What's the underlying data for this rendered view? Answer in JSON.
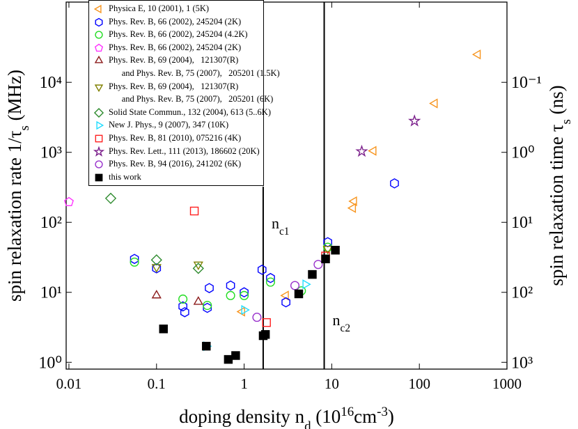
{
  "chart_data": {
    "type": "scatter",
    "log_x": true,
    "log_y": true,
    "xlim": [
      0.0093,
      1000
    ],
    "xticks": [
      0.01,
      0.1,
      1,
      10,
      100,
      1000
    ],
    "ylim": [
      0.8,
      140000
    ],
    "yticks": [
      {
        "value": 1,
        "label": "10⁰"
      },
      {
        "value": 10,
        "label": "10¹"
      },
      {
        "value": 100,
        "label": "10²"
      },
      {
        "value": 1000,
        "label": "10³"
      },
      {
        "value": 10000,
        "label": "10⁴"
      }
    ],
    "y2lim": [
      1250,
      0.00714
    ],
    "y2ticks": [
      {
        "value": 0.1,
        "label": "10⁻¹"
      },
      {
        "value": 1,
        "label": "10⁰"
      },
      {
        "value": 10,
        "label": "10¹"
      },
      {
        "value": 100,
        "label": "10²"
      },
      {
        "value": 1000,
        "label": "10³"
      }
    ],
    "xlabel": [
      "doping density n",
      "d",
      " (10",
      "16",
      "cm",
      "-3",
      ")"
    ],
    "ylabel": [
      "spin relaxation rate 1/τ",
      "s",
      " (MHz)"
    ],
    "y2label": [
      "spin relaxation time τ",
      "s",
      " (ns)"
    ],
    "vlines": [
      {
        "x": 1.65,
        "label": [
          "n",
          "c1"
        ]
      },
      {
        "x": 8.2,
        "label": [
          "n",
          "c2"
        ]
      }
    ],
    "series": [
      {
        "name": "Physica E, 10 (2001), 1 (5K)",
        "color": "#f7941d",
        "marker": "tri-left",
        "filled": false,
        "x": [
          0.95,
          3.0,
          17.5,
          18,
          30,
          150,
          465
        ],
        "values": [
          5.3,
          9,
          160,
          200,
          1050,
          5000,
          25000
        ]
      },
      {
        "name": "Phys. Rev. B, 66 (2002), 245204 (2K)",
        "color": "#0000ff",
        "marker": "hexagon",
        "filled": false,
        "x": [
          0.056,
          0.1,
          0.2,
          0.21,
          0.38,
          0.4,
          0.7,
          1.0,
          1.6,
          2.0,
          3.0,
          9,
          52
        ],
        "values": [
          30,
          22,
          6.3,
          5.2,
          6,
          11.5,
          12.5,
          10,
          21,
          16,
          7.2,
          52,
          360
        ]
      },
      {
        "name": "Phys. Rev. B, 66 (2002), 245204 (4.2K)",
        "color": "#22dd22",
        "marker": "circle",
        "filled": false,
        "x": [
          0.056,
          0.2,
          0.38,
          0.7,
          1.0,
          2.0,
          4.5,
          9
        ],
        "values": [
          27,
          8,
          6.5,
          9,
          9,
          14,
          10.5,
          44
        ]
      },
      {
        "name": "Phys. Rev. B, 66 (2002), 245204 (2K)",
        "color": "#ff33ff",
        "marker": "pentagon",
        "filled": false,
        "x": [
          0.01
        ],
        "values": [
          195
        ]
      },
      {
        "name": "Phys. Rev. B, 69 (2004),   121307(R)\n      and Phys. Rev. B, 75 (2007),   205201 (1.5K)",
        "color": "#8b1a1a",
        "marker": "tri-up",
        "filled": false,
        "x": [
          0.1,
          0.3
        ],
        "values": [
          9,
          7.3
        ]
      },
      {
        "name": "Phys. Rev. B, 69 (2004),   121307(R)\n      and Phys. Rev. B, 75 (2007),   205201 (6K)",
        "color": "#808000",
        "marker": "tri-down",
        "filled": false,
        "x": [
          0.1,
          0.3,
          9
        ],
        "values": [
          23,
          25,
          42
        ]
      },
      {
        "name": "Solid State Commun., 132 (2004), 613 (5..6K)",
        "color": "#2e8b2e",
        "marker": "diamond",
        "filled": false,
        "x": [
          0.03,
          0.1,
          0.3
        ],
        "values": [
          220,
          29,
          22
        ]
      },
      {
        "name": "New J. Phys., 9 (2007), 347 (10K)",
        "color": "#22ddff",
        "marker": "tri-right",
        "filled": false,
        "x": [
          0.37,
          1.0,
          5
        ],
        "values": [
          1.7,
          5.6,
          13
        ]
      },
      {
        "name": "Phys. Rev. B, 81 (2010), 075216 (4K)",
        "color": "#ff2020",
        "marker": "square",
        "filled": false,
        "x": [
          0.27,
          1.8,
          8.5
        ],
        "values": [
          145,
          3.7,
          33
        ]
      },
      {
        "name": "Phys. Rev. Lett., 111 (2013), 186602 (20K)",
        "color": "#7b1f8b",
        "marker": "star",
        "filled": false,
        "x": [
          22,
          88
        ],
        "values": [
          1030,
          2800
        ]
      },
      {
        "name": "Phys. Rev. B, 94 (2016), 241202 (6K)",
        "color": "#9932cc",
        "marker": "circle",
        "filled": false,
        "x": [
          1.4,
          3.8,
          7
        ],
        "values": [
          4.4,
          12.5,
          25
        ]
      },
      {
        "name": "this work",
        "color": "#000000",
        "marker": "square",
        "filled": true,
        "x": [
          0.12,
          0.37,
          0.66,
          0.8,
          1.65,
          1.75,
          4.2,
          6,
          8.5,
          11
        ],
        "values": [
          3.0,
          1.7,
          1.1,
          1.25,
          2.4,
          2.5,
          9.5,
          18,
          30,
          40
        ]
      }
    ]
  }
}
